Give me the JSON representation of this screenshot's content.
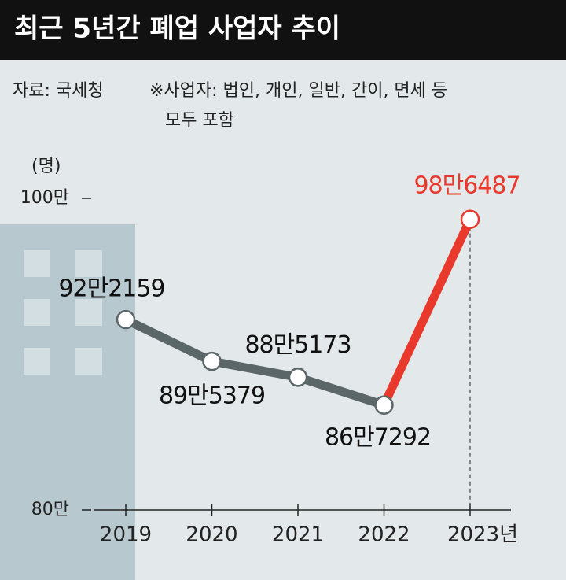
{
  "chart_data": {
    "type": "line",
    "title": "최근 5년간 폐업 사업자 추이",
    "source": "자료: 국세청",
    "note": [
      "※사업자: 법인, 개인, 일반, 간이, 면세 등",
      "모두 포함"
    ],
    "y_label": "(명)",
    "categories": [
      "2019",
      "2020",
      "2021",
      "2022",
      "2023년"
    ],
    "series": [
      {
        "values": [
          922159,
          895379,
          885173,
          867292,
          986487
        ],
        "value_labels": [
          "92만2159",
          "89만5379",
          "88만5173",
          "86만7292",
          "98만6487"
        ],
        "color": "#5b6669",
        "segment_colors": [
          "#5b6669",
          "#5b6669",
          "#5b6669",
          "#e8392c"
        ],
        "value_label_colors": [
          "#111111",
          "#111111",
          "#111111",
          "#111111",
          "#e8392c"
        ]
      }
    ],
    "ylim": [
      800000,
      1000000
    ],
    "yticks": [
      {
        "value": 800000,
        "label": "80만"
      },
      {
        "value": 1000000,
        "label": "100만"
      }
    ]
  }
}
